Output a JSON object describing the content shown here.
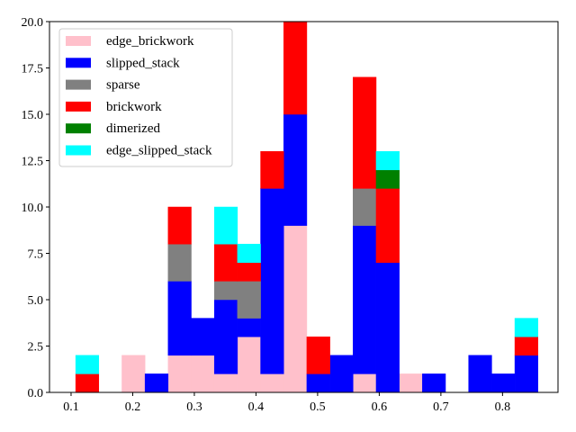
{
  "chart_data": {
    "type": "bar",
    "stacked": true,
    "title": "",
    "xlabel": "",
    "ylabel": "",
    "xlim": [
      0.065,
      0.89
    ],
    "ylim": [
      0,
      20
    ],
    "bin_width": 0.0375,
    "bin_left_edges": [
      0.1075,
      0.145,
      0.1825,
      0.22,
      0.2575,
      0.295,
      0.3325,
      0.37,
      0.4075,
      0.445,
      0.4825,
      0.52,
      0.5575,
      0.595,
      0.6325,
      0.67,
      0.7075,
      0.745,
      0.7825,
      0.82
    ],
    "x_ticks": [
      0.1,
      0.2,
      0.3,
      0.4,
      0.5,
      0.6,
      0.7,
      0.8
    ],
    "x_tick_labels": [
      "0.1",
      "0.2",
      "0.3",
      "0.4",
      "0.5",
      "0.6",
      "0.7",
      "0.8"
    ],
    "y_ticks": [
      0,
      2.5,
      5,
      7.5,
      10,
      12.5,
      15,
      17.5,
      20
    ],
    "y_tick_labels": [
      "0.0",
      "2.5",
      "5.0",
      "7.5",
      "10.0",
      "12.5",
      "15.0",
      "17.5",
      "20.0"
    ],
    "grid": false,
    "legend_position": "upper-left",
    "series": [
      {
        "name": "edge_brickwork",
        "color": "#ffc0cb",
        "values": [
          0,
          0,
          2,
          0,
          2,
          2,
          1,
          3,
          1,
          9,
          0,
          0,
          1,
          0,
          1,
          0,
          0,
          0,
          0,
          0
        ]
      },
      {
        "name": "slipped_stack",
        "color": "#0000ff",
        "values": [
          0,
          0,
          0,
          1,
          4,
          2,
          4,
          1,
          10,
          6,
          1,
          2,
          8,
          7,
          0,
          1,
          0,
          2,
          1,
          2
        ]
      },
      {
        "name": "sparse",
        "color": "#808080",
        "values": [
          0,
          0,
          0,
          0,
          2,
          0,
          1,
          2,
          0,
          0,
          0,
          0,
          2,
          0,
          0,
          0,
          0,
          0,
          0,
          0
        ]
      },
      {
        "name": "brickwork",
        "color": "#ff0000",
        "values": [
          1,
          0,
          0,
          0,
          2,
          0,
          2,
          1,
          2,
          5,
          2,
          0,
          6,
          4,
          0,
          0,
          0,
          0,
          0,
          1
        ]
      },
      {
        "name": "dimerized",
        "color": "#008000",
        "values": [
          0,
          0,
          0,
          0,
          0,
          0,
          0,
          0,
          0,
          0,
          0,
          0,
          0,
          1,
          0,
          0,
          0,
          0,
          0,
          0
        ]
      },
      {
        "name": "edge_slipped_stack",
        "color": "#00ffff",
        "values": [
          1,
          0,
          0,
          0,
          0,
          0,
          2,
          1,
          0,
          0,
          0,
          0,
          0,
          1,
          0,
          0,
          0,
          0,
          0,
          1
        ]
      }
    ]
  }
}
